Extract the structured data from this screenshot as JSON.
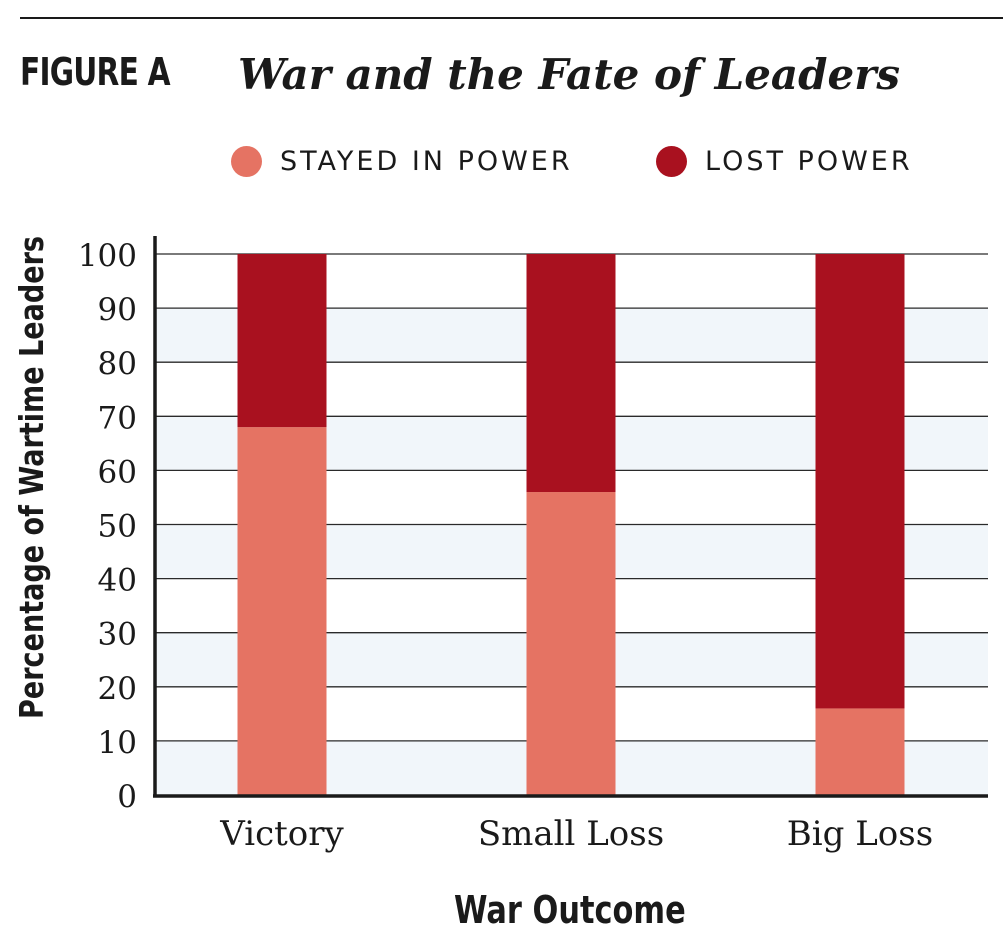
{
  "figure": {
    "label": "FIGURE A",
    "title": "War and the Fate of Leaders"
  },
  "legend": {
    "items": [
      {
        "label": "STAYED IN POWER",
        "color": "#e57363"
      },
      {
        "label": "LOST POWER",
        "color": "#a9111f"
      }
    ],
    "placement": "top-center"
  },
  "chart_data": {
    "type": "bar",
    "stacked": true,
    "title": "War and the Fate of Leaders",
    "xlabel": "War Outcome",
    "ylabel": "Percentage of Wartime Leaders",
    "categories": [
      "Victory",
      "Small Loss",
      "Big Loss"
    ],
    "series": [
      {
        "name": "STAYED IN POWER",
        "values": [
          68,
          56,
          16
        ],
        "color": "#e57363"
      },
      {
        "name": "LOST POWER",
        "values": [
          32,
          44,
          84
        ],
        "color": "#a9111f"
      }
    ],
    "ylim": [
      0,
      100
    ],
    "yticks": [
      0,
      10,
      20,
      30,
      40,
      50,
      60,
      70,
      80,
      90,
      100
    ],
    "grid": true,
    "band_color": "#f1f6fa"
  }
}
